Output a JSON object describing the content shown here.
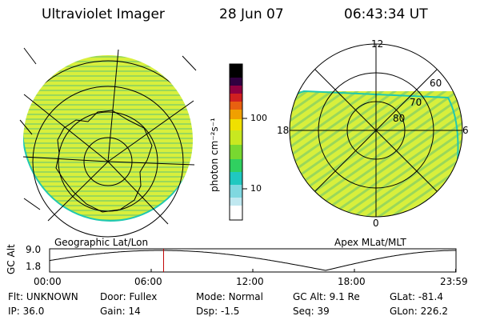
{
  "header": {
    "instrument": "Ultraviolet Imager",
    "date": "28 Jun 07",
    "time": "06:43:34 UT"
  },
  "left_panel": {
    "label": "Geographic Lat/Lon"
  },
  "right_panel": {
    "label": "Apex MLat/MLT",
    "mlt_labels": [
      "12",
      "6",
      "0",
      "18"
    ],
    "lat_labels": [
      "60",
      "70",
      "80"
    ]
  },
  "colorbar": {
    "unit_label": "photon cm⁻²s⁻¹",
    "tick_labels": [
      "100",
      "10"
    ],
    "ticks": [
      100,
      10
    ],
    "range": [
      2,
      600
    ],
    "scale": "log",
    "colors": [
      "#ffffff",
      "#20d0d0",
      "#30d030",
      "#c8e820",
      "#f0e000",
      "#f0a000",
      "#e03030",
      "#c00040",
      "#60005a",
      "#000000"
    ]
  },
  "timeline": {
    "axis_title": "GC Alt",
    "ytick_labels": [
      "9.0",
      "1.8"
    ],
    "ylim": [
      1.8,
      9.0
    ],
    "xtick_labels": [
      "00:00",
      "06:00",
      "12:00",
      "18:00",
      "23:59"
    ],
    "x_hours": [
      0,
      6,
      12,
      18,
      23.98
    ],
    "current_hour": 6.73,
    "curve_color": "#000000",
    "marker_color": "#c00000"
  },
  "info": {
    "row1": [
      {
        "key": "Flt:",
        "value": "UNKNOWN"
      },
      {
        "key": "Door:",
        "value": "Fullex"
      },
      {
        "key": "Mode:",
        "value": "Normal"
      },
      {
        "key": "GC Alt:",
        "value": "9.1 Re"
      },
      {
        "key": "GLat:",
        "value": "-81.4"
      }
    ],
    "row2": [
      {
        "key": "IP:",
        "value": "36.0"
      },
      {
        "key": "Gain:",
        "value": "14"
      },
      {
        "key": "Dsp:",
        "value": "-1.5"
      },
      {
        "key": "Seq:",
        "value": "39"
      },
      {
        "key": "GLon:",
        "value": "226.2"
      }
    ]
  }
}
